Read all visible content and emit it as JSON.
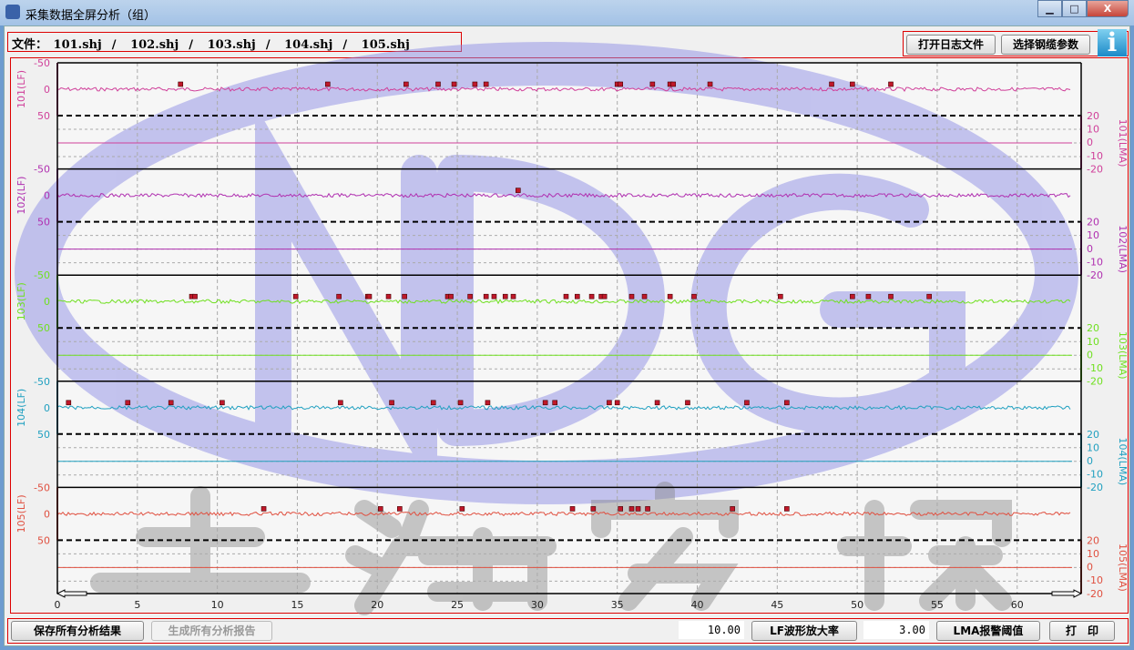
{
  "window": {
    "title": "采集数据全屏分析（组）",
    "minimize": "▁",
    "maximize": "□",
    "close": "X"
  },
  "files": {
    "label": "文件：",
    "items": [
      "101.shj",
      "102.shj",
      "103.shj",
      "104.shj",
      "105.shj"
    ],
    "separator": "/"
  },
  "toolbar": {
    "open_log": "打开日志文件",
    "select_cable": "选择钢缆参数",
    "info": "i"
  },
  "bottom": {
    "save_all": "保存所有分析结果",
    "generate_report": "生成所有分析报告",
    "lf_gain_value": "10.00",
    "lf_gain_button": "LF波形放大率",
    "lma_threshold_value": "3.00",
    "lma_threshold_button": "LMA报警阈值",
    "print": "打　印"
  },
  "watermark": {
    "logo": "NDG",
    "text": "上海宏探"
  },
  "chart_data": {
    "type": "line",
    "x_ticks": [
      0,
      5,
      10,
      15,
      20,
      25,
      30,
      35,
      40,
      45,
      50,
      55,
      60
    ],
    "xlim": [
      0,
      64
    ],
    "lf_ylim": [
      -50,
      50
    ],
    "lf_ticks": [
      "-50",
      "0",
      "50"
    ],
    "lma_ylim": [
      -20,
      20
    ],
    "lma_ticks": [
      "20",
      "10",
      "0",
      "-10",
      "-20"
    ],
    "grid": true,
    "channels": [
      {
        "lf_label": "101(LF)",
        "lma_label": "101(LMA)",
        "color": "#d0409a",
        "defects": [
          7.7,
          16.9,
          21.8,
          23.8,
          24.8,
          26.1,
          26.8,
          35.0,
          35.2,
          37.2,
          38.3,
          38.5,
          40.8,
          48.4,
          49.7,
          52.1
        ]
      },
      {
        "lf_label": "102(LF)",
        "lma_label": "102(LMA)",
        "color": "#b030b0",
        "defects": [
          28.8
        ]
      },
      {
        "lf_label": "103(LF)",
        "lma_label": "103(LMA)",
        "color": "#70e020",
        "defects": [
          8.4,
          8.6,
          14.9,
          17.6,
          19.4,
          19.5,
          20.7,
          21.7,
          24.4,
          24.6,
          25.8,
          26.8,
          27.3,
          28.0,
          28.5,
          31.8,
          32.5,
          33.4,
          34.0,
          34.2,
          35.9,
          36.7,
          38.3,
          39.8,
          45.2,
          49.7,
          50.7,
          52.1,
          54.5
        ]
      },
      {
        "lf_label": "104(LF)",
        "lma_label": "104(LMA)",
        "color": "#20a0c0",
        "defects": [
          0.7,
          4.4,
          7.1,
          10.3,
          17.7,
          20.9,
          23.5,
          25.2,
          26.9,
          30.5,
          31.1,
          34.5,
          35.0,
          37.5,
          39.4,
          43.1,
          45.6
        ]
      },
      {
        "lf_label": "105(LF)",
        "lma_label": "105(LMA)",
        "color": "#e05040",
        "defects": [
          12.9,
          20.2,
          21.4,
          25.3,
          32.2,
          33.5,
          35.2,
          35.9,
          36.3,
          36.9,
          42.2,
          45.6
        ]
      }
    ]
  }
}
